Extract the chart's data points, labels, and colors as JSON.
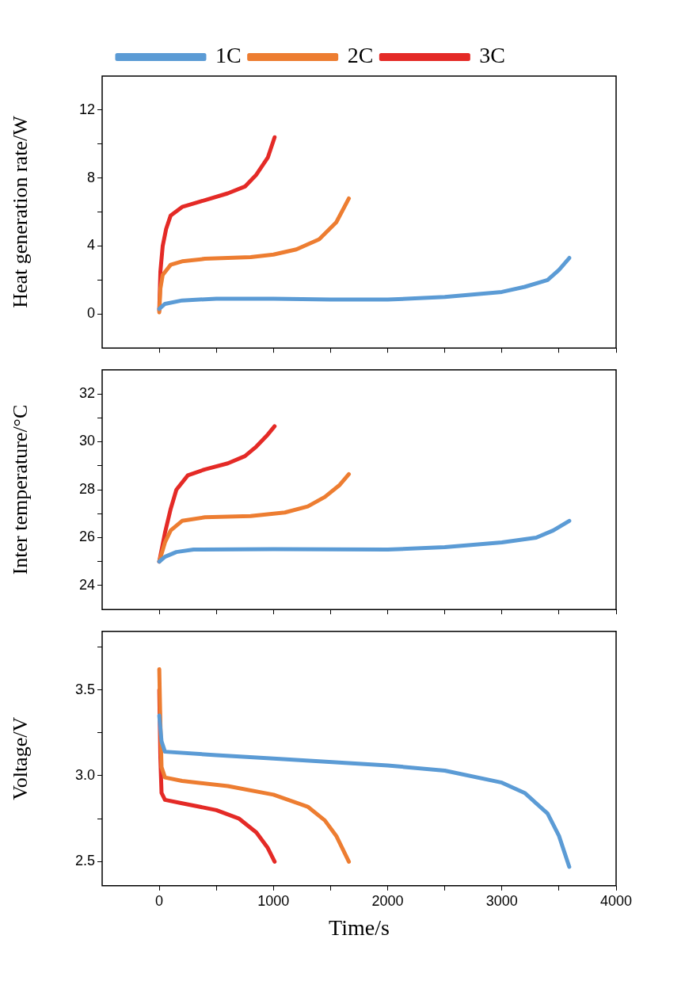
{
  "chart_data": [
    {
      "type": "line",
      "ylabel": "Heat generation rate/W",
      "xlim": [
        -500,
        4000
      ],
      "xticks": [
        0,
        {
          "value": 500,
          "label": null
        },
        1000,
        {
          "value": 1500,
          "label": null
        },
        2000,
        {
          "value": 2500,
          "label": null
        },
        3000,
        {
          "value": 3500,
          "label": null
        },
        4000
      ],
      "ylim": [
        -2,
        14
      ],
      "yticks": [
        0,
        {
          "value": 2,
          "label": null
        },
        4,
        {
          "value": 6,
          "label": null
        },
        8,
        {
          "value": 10,
          "label": null
        },
        12
      ],
      "tick_labels": "y",
      "legend": "top",
      "series": [
        {
          "name": "1C",
          "color": "#5b9bd5",
          "x": [
            0,
            50,
            200,
            500,
            1000,
            1500,
            2000,
            2500,
            3000,
            3200,
            3400,
            3500,
            3590
          ],
          "values": [
            0.3,
            0.6,
            0.8,
            0.9,
            0.9,
            0.85,
            0.85,
            1.0,
            1.3,
            1.6,
            2.0,
            2.6,
            3.3
          ]
        },
        {
          "name": "2C",
          "color": "#ed7d31",
          "x": [
            0,
            10,
            30,
            100,
            200,
            400,
            800,
            1000,
            1200,
            1400,
            1550,
            1660
          ],
          "values": [
            0.1,
            1.5,
            2.3,
            2.9,
            3.1,
            3.25,
            3.35,
            3.5,
            3.8,
            4.4,
            5.4,
            6.8
          ]
        },
        {
          "name": "3C",
          "color": "#e42a26",
          "x": [
            0,
            10,
            30,
            60,
            100,
            200,
            400,
            600,
            750,
            850,
            950,
            1010
          ],
          "values": [
            0.2,
            2.5,
            4.0,
            5.0,
            5.8,
            6.3,
            6.7,
            7.1,
            7.5,
            8.2,
            9.2,
            10.4
          ]
        }
      ]
    },
    {
      "type": "line",
      "ylabel": "Inter temperature/°C",
      "xlim": [
        -500,
        4000
      ],
      "xticks": [
        0,
        {
          "value": 500,
          "label": null
        },
        1000,
        {
          "value": 1500,
          "label": null
        },
        2000,
        {
          "value": 2500,
          "label": null
        },
        3000,
        {
          "value": 3500,
          "label": null
        },
        4000
      ],
      "ylim": [
        23,
        33
      ],
      "yticks": [
        24,
        {
          "value": 25,
          "label": null
        },
        26,
        {
          "value": 27,
          "label": null
        },
        28,
        {
          "value": 29,
          "label": null
        },
        30,
        {
          "value": 31,
          "label": null
        },
        32
      ],
      "tick_labels": "y",
      "series": [
        {
          "color": "#5b9bd5",
          "x": [
            0,
            50,
            150,
            300,
            1000,
            2000,
            2500,
            3000,
            3300,
            3450,
            3590
          ],
          "values": [
            25,
            25.2,
            25.4,
            25.5,
            25.52,
            25.5,
            25.6,
            25.8,
            26.0,
            26.3,
            26.7
          ]
        },
        {
          "color": "#ed7d31",
          "x": [
            0,
            50,
            100,
            200,
            400,
            800,
            1100,
            1300,
            1450,
            1580,
            1660
          ],
          "values": [
            25,
            25.8,
            26.3,
            26.7,
            26.85,
            26.9,
            27.05,
            27.3,
            27.7,
            28.2,
            28.65
          ]
        },
        {
          "color": "#e42a26",
          "x": [
            0,
            50,
            100,
            150,
            250,
            400,
            600,
            750,
            850,
            950,
            1010
          ],
          "values": [
            25,
            26.2,
            27.2,
            28.0,
            28.6,
            28.85,
            29.1,
            29.4,
            29.8,
            30.3,
            30.65
          ]
        }
      ]
    },
    {
      "type": "line",
      "xlabel": "Time/s",
      "ylabel": "Voltage/V",
      "xlim": [
        -500,
        4000
      ],
      "xticks": [
        0,
        {
          "value": 500,
          "label": null
        },
        1000,
        {
          "value": 1500,
          "label": null
        },
        2000,
        {
          "value": 2500,
          "label": null
        },
        3000,
        {
          "value": 3500,
          "label": null
        },
        4000
      ],
      "ylim": [
        2.36,
        3.84
      ],
      "yticks": [
        2.5,
        {
          "value": 2.75,
          "label": null
        },
        {
          "value": 3,
          "label": "3.0"
        },
        {
          "value": 3.25,
          "label": null
        },
        3.5,
        {
          "value": 3.75,
          "label": null
        }
      ],
      "series": [
        {
          "color": "#5b9bd5",
          "x": [
            0,
            20,
            50,
            500,
            1000,
            2000,
            2500,
            3000,
            3200,
            3400,
            3500,
            3590
          ],
          "values": [
            3.35,
            3.2,
            3.14,
            3.12,
            3.1,
            3.06,
            3.03,
            2.96,
            2.9,
            2.78,
            2.65,
            2.47
          ]
        },
        {
          "color": "#ed7d31",
          "x": [
            0,
            10,
            20,
            50,
            200,
            600,
            1000,
            1300,
            1450,
            1550,
            1660
          ],
          "values": [
            3.62,
            3.3,
            3.05,
            2.99,
            2.97,
            2.94,
            2.89,
            2.82,
            2.74,
            2.65,
            2.5
          ]
        },
        {
          "color": "#e42a26",
          "x": [
            0,
            10,
            20,
            50,
            200,
            500,
            700,
            850,
            950,
            1010
          ],
          "values": [
            3.5,
            3.1,
            2.9,
            2.86,
            2.84,
            2.8,
            2.75,
            2.67,
            2.58,
            2.5
          ]
        }
      ]
    }
  ]
}
